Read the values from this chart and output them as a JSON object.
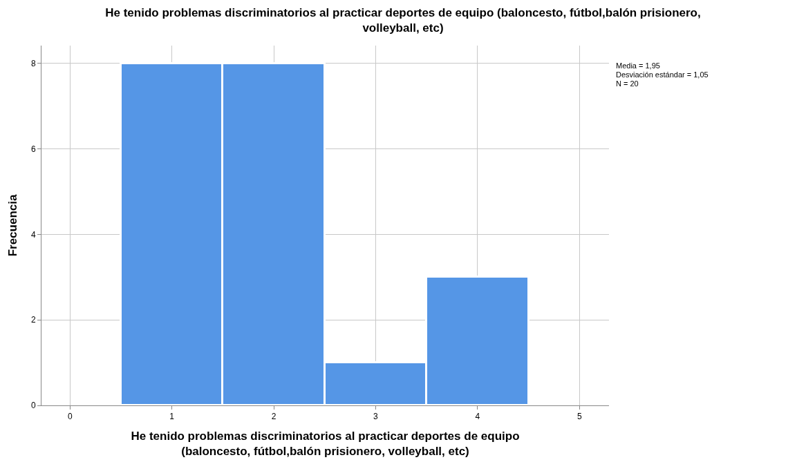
{
  "chart_data": {
    "type": "histogram",
    "title": "He tenido problemas discriminatorios al practicar deportes de equipo (baloncesto, fútbol,balón prisionero,\nvolleyball, etc)",
    "xlabel": "He tenido problemas discriminatorios al practicar deportes de equipo\n(baloncesto, fútbol,balón prisionero, volleyball, etc)",
    "ylabel": "Frecuencia",
    "bins": [
      0.5,
      1.5,
      2.5,
      3.5,
      4.5
    ],
    "values": [
      8,
      8,
      1,
      3
    ],
    "color": "#5596e6",
    "xlim": [
      -0.28,
      5.29
    ],
    "xticks": [
      0,
      1,
      2,
      3,
      4,
      5
    ],
    "ylim": [
      0,
      8.42
    ],
    "yticks": [
      0,
      2,
      4,
      6,
      8
    ],
    "grid": true,
    "annotations": [
      "Media = 1,95",
      "Desviación estándar = 1,05",
      "N = 20"
    ]
  }
}
